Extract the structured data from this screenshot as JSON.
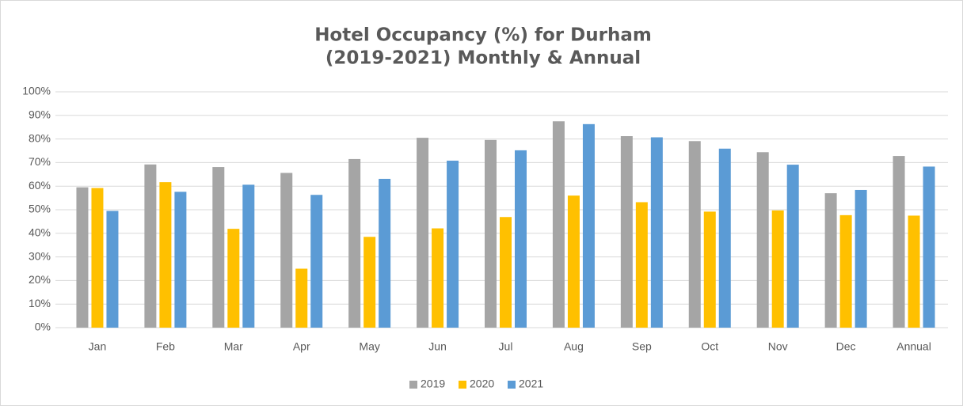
{
  "chart_data": {
    "type": "bar",
    "title": [
      "Hotel Occupancy (%) for Durham",
      "(2019-2021) Monthly & Annual"
    ],
    "categories": [
      "Jan",
      "Feb",
      "Mar",
      "Apr",
      "May",
      "Jun",
      "Jul",
      "Aug",
      "Sep",
      "Oct",
      "Nov",
      "Dec",
      "Annual"
    ],
    "series": [
      {
        "name": "2019",
        "color": "#a5a5a5",
        "values": [
          59.5,
          69.2,
          68.1,
          65.6,
          71.5,
          80.5,
          79.6,
          87.5,
          81.2,
          79.1,
          74.4,
          57.0,
          72.8
        ]
      },
      {
        "name": "2020",
        "color": "#ffc000",
        "values": [
          59.2,
          61.7,
          41.9,
          25.0,
          38.5,
          42.1,
          46.9,
          56.0,
          53.2,
          49.2,
          49.7,
          47.7,
          47.5
        ]
      },
      {
        "name": "2021",
        "color": "#5b9bd5",
        "values": [
          49.5,
          57.6,
          60.6,
          56.3,
          63.1,
          70.8,
          75.2,
          86.3,
          80.7,
          75.9,
          69.1,
          58.4,
          68.3
        ]
      }
    ],
    "ylim": [
      0,
      100
    ],
    "yticks": [
      {
        "value": 0,
        "label": "0%"
      },
      {
        "value": 10,
        "label": "10%"
      },
      {
        "value": 20,
        "label": "20%"
      },
      {
        "value": 30,
        "label": "30%"
      },
      {
        "value": 40,
        "label": "40%"
      },
      {
        "value": 50,
        "label": "50%"
      },
      {
        "value": 60,
        "label": "60%"
      },
      {
        "value": 70,
        "label": "70%"
      },
      {
        "value": 80,
        "label": "80%"
      },
      {
        "value": 90,
        "label": "90%"
      },
      {
        "value": 100,
        "label": "100%"
      }
    ],
    "grid": true,
    "legend": "bottom"
  }
}
